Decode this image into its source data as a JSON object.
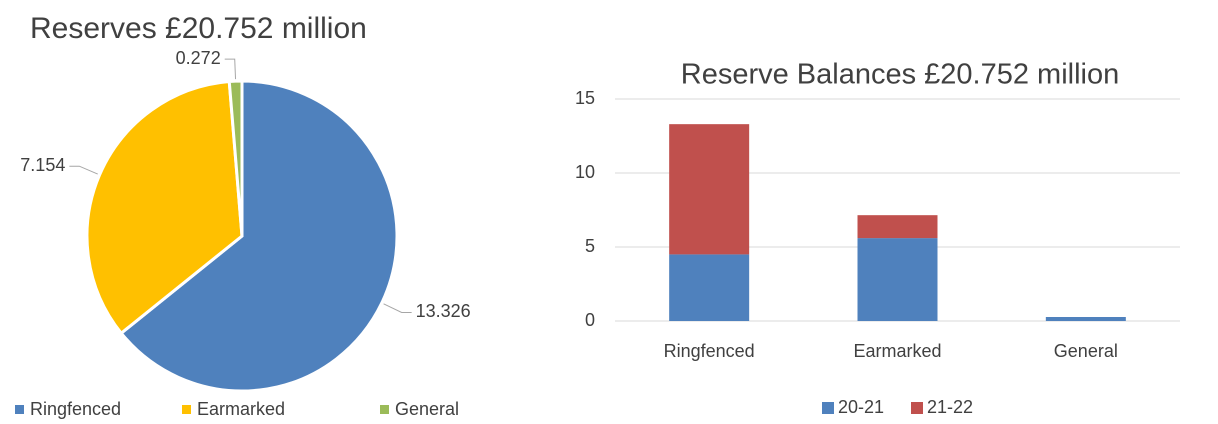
{
  "chart_data": [
    {
      "type": "pie",
      "title": "Reserves £20.752 million",
      "categories": [
        "Ringfenced",
        "Earmarked",
        "General"
      ],
      "values": [
        13.326,
        7.154,
        0.272
      ],
      "colors": [
        "#4f81bd",
        "#ffc000",
        "#9bbb59"
      ],
      "legend": "bottom"
    },
    {
      "type": "stacked_bar",
      "title": "Reserve Balances £20.752 million",
      "categories": [
        "Ringfenced",
        "Earmarked",
        "General"
      ],
      "series": [
        {
          "name": "20-21",
          "color": "#4f81bd",
          "values": [
            4.5,
            5.6,
            0.27
          ]
        },
        {
          "name": "21-22",
          "color": "#c0504d",
          "values": [
            8.8,
            1.55,
            0
          ]
        }
      ],
      "ylim": [
        0,
        15
      ],
      "yticks": [
        0,
        5,
        10,
        15
      ],
      "grid": true,
      "legend": "bottom"
    }
  ]
}
